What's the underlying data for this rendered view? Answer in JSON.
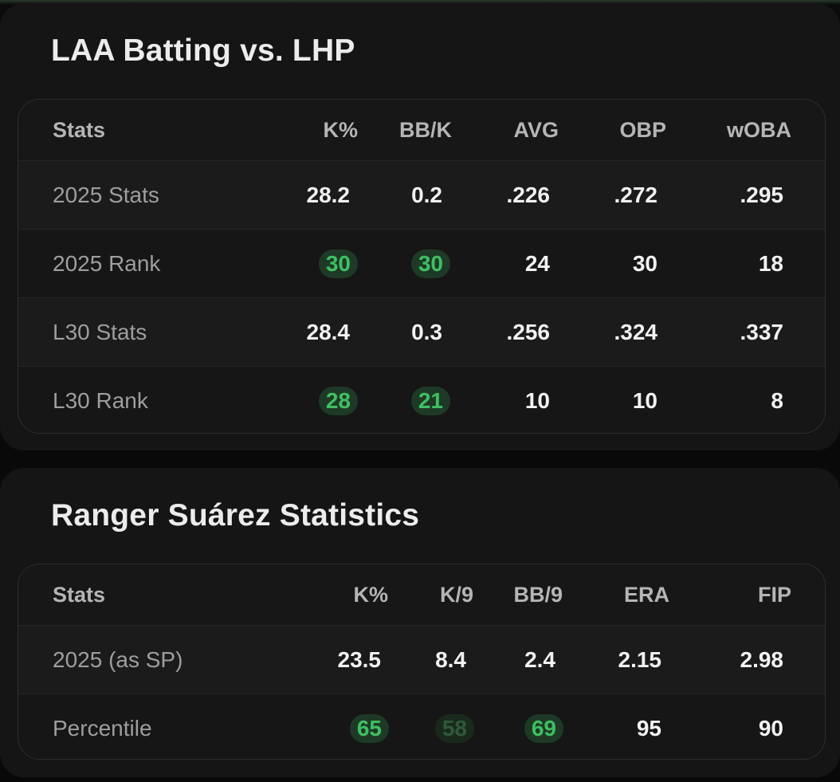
{
  "card1": {
    "title": "LAA Batting vs. LHP",
    "headers": [
      "Stats",
      "K%",
      "BB/K",
      "AVG",
      "OBP",
      "wOBA"
    ],
    "rows": [
      {
        "label": "2025 Stats",
        "values": [
          "28.2",
          "0.2",
          ".226",
          ".272",
          ".295"
        ]
      },
      {
        "label": "2025 Rank",
        "values": [
          "30",
          "30",
          "24",
          "30",
          "18"
        ]
      },
      {
        "label": "L30 Stats",
        "values": [
          "28.4",
          "0.3",
          ".256",
          ".324",
          ".337"
        ]
      },
      {
        "label": "L30 Rank",
        "values": [
          "28",
          "21",
          "10",
          "10",
          "8"
        ]
      }
    ]
  },
  "card2": {
    "title": "Ranger Suárez Statistics",
    "headers": [
      "Stats",
      "K%",
      "K/9",
      "BB/9",
      "ERA",
      "FIP"
    ],
    "rows": [
      {
        "label": "2025 (as SP)",
        "values": [
          "23.5",
          "8.4",
          "2.4",
          "2.15",
          "2.98"
        ]
      },
      {
        "label": "Percentile",
        "values": [
          "65",
          "58",
          "69",
          "95",
          "90"
        ]
      }
    ]
  },
  "colors": {
    "highlight_green": "#3fbf63",
    "highlight_bg": "#1e3a26",
    "muted_green": "#2e5a3a"
  }
}
